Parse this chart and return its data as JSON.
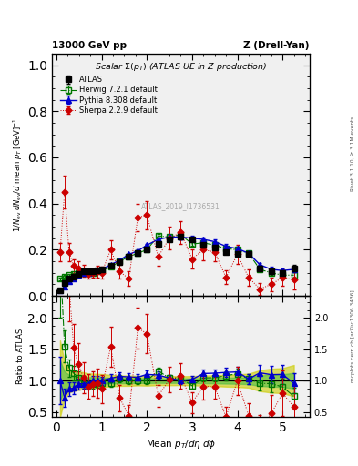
{
  "title_top_left": "13000 GeV pp",
  "title_top_right": "Z (Drell-Yan)",
  "plot_title": "Scalar Σ(p_{T}) (ATLAS UE in Z production)",
  "xlabel": "Mean p$_T$/dη dφ",
  "ylabel_main": "1/N_{ev} dN_{ev}/d mean p_T [GeV]^{-1}",
  "ylabel_ratio": "Ratio to ATLAS",
  "watermark": "ATLAS_2019_I1736531",
  "rivet_text": "Rivet 3.1.10, ≥ 3.1M events",
  "arxiv_text": "mcplots.cern.ch [arXiv:1306.3436]",
  "xlim": [
    -0.1,
    5.6
  ],
  "ylim_main": [
    0.0,
    1.05
  ],
  "ylim_ratio": [
    0.42,
    2.35
  ],
  "atlas_x": [
    0.08,
    0.18,
    0.28,
    0.38,
    0.48,
    0.6,
    0.7,
    0.8,
    0.9,
    1.0,
    1.2,
    1.4,
    1.6,
    1.8,
    2.0,
    2.25,
    2.5,
    2.75,
    3.0,
    3.25,
    3.5,
    3.75,
    4.0,
    4.25,
    4.5,
    4.75,
    5.0,
    5.25
  ],
  "atlas_y": [
    0.025,
    0.055,
    0.075,
    0.085,
    0.095,
    0.105,
    0.105,
    0.105,
    0.11,
    0.115,
    0.13,
    0.145,
    0.17,
    0.185,
    0.2,
    0.225,
    0.245,
    0.255,
    0.245,
    0.22,
    0.21,
    0.19,
    0.18,
    0.18,
    0.12,
    0.105,
    0.1,
    0.12
  ],
  "atlas_yerr": [
    0.008,
    0.008,
    0.007,
    0.007,
    0.007,
    0.007,
    0.006,
    0.006,
    0.006,
    0.006,
    0.006,
    0.006,
    0.007,
    0.007,
    0.008,
    0.008,
    0.009,
    0.009,
    0.009,
    0.009,
    0.009,
    0.009,
    0.009,
    0.01,
    0.01,
    0.01,
    0.01,
    0.015
  ],
  "herwig_x": [
    0.08,
    0.18,
    0.28,
    0.38,
    0.48,
    0.6,
    0.7,
    0.8,
    0.9,
    1.0,
    1.2,
    1.4,
    1.6,
    1.8,
    2.0,
    2.25,
    2.5,
    2.75,
    3.0,
    3.25,
    3.5,
    3.75,
    4.0,
    4.25,
    4.5,
    4.75,
    5.0,
    5.25
  ],
  "herwig_y": [
    0.075,
    0.085,
    0.09,
    0.095,
    0.1,
    0.1,
    0.1,
    0.1,
    0.105,
    0.11,
    0.125,
    0.15,
    0.17,
    0.185,
    0.2,
    0.26,
    0.255,
    0.265,
    0.225,
    0.23,
    0.22,
    0.205,
    0.2,
    0.185,
    0.115,
    0.1,
    0.09,
    0.09
  ],
  "herwig_yerr": [
    0.006,
    0.006,
    0.006,
    0.006,
    0.006,
    0.005,
    0.005,
    0.005,
    0.005,
    0.005,
    0.005,
    0.006,
    0.006,
    0.007,
    0.007,
    0.008,
    0.008,
    0.009,
    0.009,
    0.009,
    0.009,
    0.009,
    0.01,
    0.01,
    0.01,
    0.01,
    0.01,
    0.012
  ],
  "pythia_x": [
    0.08,
    0.18,
    0.28,
    0.38,
    0.48,
    0.6,
    0.7,
    0.8,
    0.9,
    1.0,
    1.2,
    1.4,
    1.6,
    1.8,
    2.0,
    2.25,
    2.5,
    2.75,
    3.0,
    3.25,
    3.5,
    3.75,
    4.0,
    4.25,
    4.5,
    4.75,
    5.0,
    5.25
  ],
  "pythia_y": [
    0.025,
    0.04,
    0.065,
    0.075,
    0.09,
    0.1,
    0.1,
    0.105,
    0.11,
    0.115,
    0.135,
    0.155,
    0.18,
    0.195,
    0.22,
    0.245,
    0.255,
    0.255,
    0.25,
    0.245,
    0.235,
    0.215,
    0.205,
    0.185,
    0.135,
    0.115,
    0.11,
    0.115
  ],
  "pythia_yerr": [
    0.005,
    0.005,
    0.005,
    0.005,
    0.005,
    0.004,
    0.004,
    0.004,
    0.005,
    0.005,
    0.005,
    0.006,
    0.006,
    0.007,
    0.007,
    0.008,
    0.008,
    0.009,
    0.009,
    0.009,
    0.009,
    0.009,
    0.009,
    0.009,
    0.009,
    0.01,
    0.01,
    0.012
  ],
  "sherpa_x": [
    0.08,
    0.18,
    0.28,
    0.38,
    0.48,
    0.6,
    0.7,
    0.8,
    0.9,
    1.0,
    1.2,
    1.4,
    1.6,
    1.8,
    2.0,
    2.25,
    2.5,
    2.75,
    3.0,
    3.25,
    3.5,
    3.75,
    4.0,
    4.25,
    4.5,
    4.75,
    5.0,
    5.25
  ],
  "sherpa_y": [
    0.19,
    0.45,
    0.19,
    0.13,
    0.12,
    0.11,
    0.095,
    0.1,
    0.105,
    0.1,
    0.2,
    0.105,
    0.075,
    0.34,
    0.35,
    0.17,
    0.25,
    0.275,
    0.16,
    0.2,
    0.19,
    0.08,
    0.18,
    0.08,
    0.03,
    0.05,
    0.08,
    0.07
  ],
  "sherpa_yerr": [
    0.04,
    0.07,
    0.04,
    0.03,
    0.03,
    0.025,
    0.02,
    0.02,
    0.025,
    0.025,
    0.04,
    0.03,
    0.03,
    0.06,
    0.06,
    0.04,
    0.05,
    0.05,
    0.04,
    0.045,
    0.04,
    0.03,
    0.04,
    0.035,
    0.025,
    0.03,
    0.035,
    0.04
  ],
  "atlas_color": "#000000",
  "herwig_color": "#007700",
  "pythia_color": "#0000cc",
  "sherpa_color": "#cc0000",
  "band_green_color": "#44bb44",
  "band_yellow_color": "#cccc00",
  "bg_color": "#f0f0f0"
}
